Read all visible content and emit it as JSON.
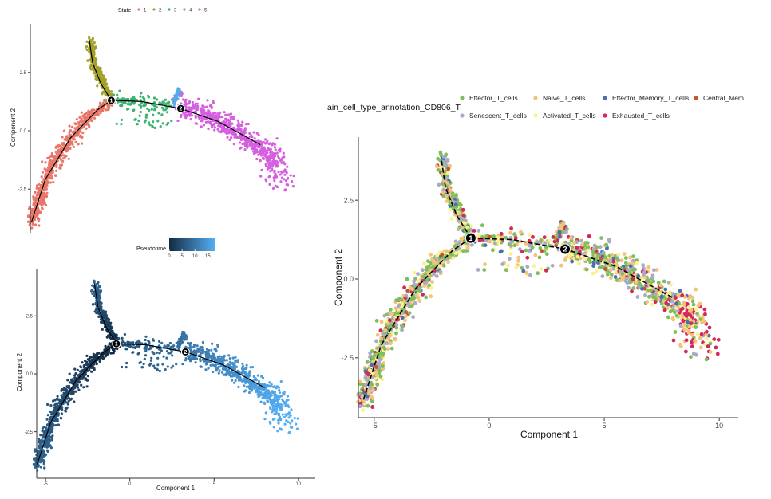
{
  "colors": {
    "state": [
      "#e8776a",
      "#a3a12b",
      "#3cb371",
      "#5aa9e6",
      "#d55fe0"
    ],
    "pseudotime_low": "#132b43",
    "pseudotime_high": "#56b1f7",
    "cell_types": [
      "#7dbf5d",
      "#f3c27b",
      "#4b6fb5",
      "#c4562d",
      "#a9a9c8",
      "#fbf38a",
      "#d7265c"
    ]
  },
  "chart_data": [
    {
      "type": "scatter",
      "panel": "state",
      "legend": {
        "title": "State",
        "entries": [
          "1",
          "2",
          "3",
          "4",
          "5"
        ],
        "placement": "top"
      },
      "xlabel": "",
      "ylabel": "Component 2",
      "xlim": [
        -6,
        11
      ],
      "ylim": [
        -4.3,
        4.3
      ],
      "yticks": [
        "2.5",
        "0.0",
        "-2.5"
      ],
      "branch_points": [
        "1",
        "2"
      ],
      "branch_xy": [
        [
          -0.8,
          1.3
        ],
        [
          3.3,
          0.95
        ]
      ],
      "trajectory": {
        "trunk": [
          [
            -0.8,
            1.3
          ],
          [
            1.0,
            1.25
          ],
          [
            3.3,
            0.95
          ],
          [
            5.5,
            0.4
          ],
          [
            8.0,
            -0.6
          ]
        ],
        "arm_to_state1": [
          [
            -0.8,
            1.3
          ],
          [
            -1.6,
            0.9
          ],
          [
            -3.2,
            -0.3
          ],
          [
            -4.7,
            -2.1
          ],
          [
            -5.5,
            -3.9
          ]
        ],
        "arm_to_state2": [
          [
            -0.8,
            1.3
          ],
          [
            -1.4,
            2.0
          ],
          [
            -1.9,
            2.9
          ],
          [
            -2.1,
            3.9
          ]
        ]
      },
      "states": [
        {
          "name": "1",
          "approx_path": [
            [
              -0.8,
              1.25
            ],
            [
              -2.0,
              0.7
            ],
            [
              -3.2,
              -0.3
            ],
            [
              -4.5,
              -1.8
            ],
            [
              -5.5,
              -3.9
            ]
          ]
        },
        {
          "name": "2",
          "approx_path": [
            [
              -0.8,
              1.4
            ],
            [
              -1.4,
              2.1
            ],
            [
              -1.9,
              3.0
            ],
            [
              -2.0,
              3.9
            ]
          ]
        },
        {
          "name": "3",
          "approx_path": [
            [
              -0.5,
              1.3
            ],
            [
              0.8,
              1.2
            ],
            [
              1.9,
              1.0
            ],
            [
              2.7,
              1.1
            ]
          ]
        },
        {
          "name": "4",
          "approx_path": [
            [
              2.9,
              1.25
            ],
            [
              3.1,
              1.5
            ],
            [
              3.2,
              1.7
            ]
          ]
        },
        {
          "name": "5",
          "approx_path": [
            [
              3.3,
              0.95
            ],
            [
              5.5,
              0.3
            ],
            [
              7.5,
              -0.5
            ],
            [
              8.8,
              -1.3
            ],
            [
              9.2,
              -2.0
            ]
          ]
        }
      ]
    },
    {
      "type": "scatter",
      "panel": "pseudotime",
      "legend": {
        "title": "Pseudotime",
        "ticks": [
          "0",
          "5",
          "10",
          "15"
        ],
        "range": [
          0,
          18
        ],
        "placement": "top"
      },
      "xlabel": "Component 1",
      "ylabel": "Component 2",
      "xlim": [
        -6,
        11
      ],
      "ylim": [
        -4.3,
        4.3
      ],
      "xticks": [
        "-5",
        "0",
        "5",
        "10"
      ],
      "yticks": [
        "2.5",
        "0.0",
        "-2.5"
      ],
      "branch_points": [
        "1",
        "2"
      ],
      "branch_xy": [
        [
          -0.8,
          1.3
        ],
        [
          3.3,
          0.95
        ]
      ]
    },
    {
      "type": "scatter",
      "panel": "cell_type",
      "legend": {
        "title": "ain_cell_type_annotation_CD806_T",
        "entries": [
          "Effector_T_cells",
          "Naive_T_cells",
          "Effector_Memory_T_cells",
          "Central_Mem",
          "Senescent_T_cells",
          "Activated_T_cells",
          "Exhausted_T_cells"
        ],
        "placement": "top-right"
      },
      "xlabel": "Component 1",
      "ylabel": "Component 2",
      "xlim": [
        -6,
        11
      ],
      "ylim": [
        -4.3,
        4.3
      ],
      "xticks": [
        "-5",
        "0",
        "5",
        "10"
      ],
      "yticks": [
        "2.5",
        "0.0",
        "-2.5"
      ],
      "branch_points": [
        "1",
        "2"
      ],
      "branch_xy": [
        [
          -0.8,
          1.3
        ],
        [
          3.3,
          0.95
        ]
      ]
    }
  ]
}
